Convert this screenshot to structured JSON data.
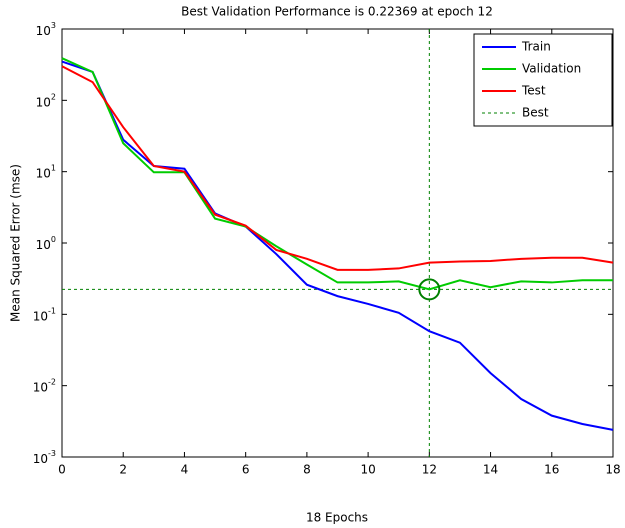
{
  "chart_data": {
    "type": "line",
    "title": "Best Validation Performance is 0.22369 at epoch 12",
    "xlabel": "18 Epochs",
    "ylabel": "Mean Squared Error  (mse)",
    "log_y": true,
    "x": [
      0,
      1,
      2,
      3,
      4,
      5,
      6,
      7,
      8,
      9,
      10,
      11,
      12,
      13,
      14,
      15,
      16,
      17,
      18
    ],
    "series": [
      {
        "name": "Train",
        "color": "#0000ff",
        "values": [
          350,
          250,
          28,
          12,
          11,
          2.6,
          1.7,
          0.7,
          0.26,
          0.18,
          0.14,
          0.105,
          0.058,
          0.04,
          0.015,
          0.0065,
          0.0038,
          0.0029,
          0.0024
        ]
      },
      {
        "name": "Validation",
        "color": "#00cc00",
        "values": [
          390,
          250,
          25,
          9.8,
          9.8,
          2.2,
          1.7,
          0.9,
          0.5,
          0.28,
          0.28,
          0.29,
          0.22369,
          0.3,
          0.24,
          0.29,
          0.28,
          0.3,
          0.3
        ]
      },
      {
        "name": "Test",
        "color": "#ff0000",
        "values": [
          300,
          180,
          42,
          12,
          10,
          2.5,
          1.75,
          0.8,
          0.6,
          0.42,
          0.42,
          0.44,
          0.53,
          0.55,
          0.56,
          0.6,
          0.62,
          0.62,
          0.53
        ]
      }
    ],
    "best": {
      "name": "Best",
      "color": "#008000",
      "x": 12,
      "value": 0.22369
    },
    "xlim": [
      0,
      18
    ],
    "xticks": [
      0,
      2,
      4,
      6,
      8,
      10,
      12,
      14,
      16,
      18
    ],
    "ylim": [
      0.001,
      1000
    ],
    "yticks": [
      {
        "value": 0.001,
        "label": "10^-3"
      },
      {
        "value": 0.01,
        "label": "10^-2"
      },
      {
        "value": 0.1,
        "label": "10^-1"
      },
      {
        "value": 1,
        "label": "10^0"
      },
      {
        "value": 10,
        "label": "10^1"
      },
      {
        "value": 100,
        "label": "10^2"
      },
      {
        "value": 1000,
        "label": "10^3"
      }
    ],
    "legend": "top-right"
  }
}
